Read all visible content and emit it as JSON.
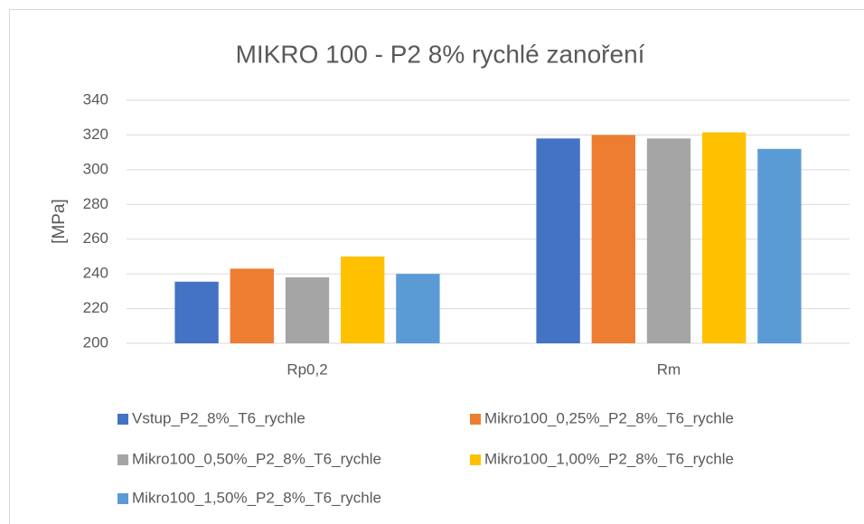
{
  "chart_data": {
    "type": "bar",
    "title": "MIKRO 100 - P2 8% rychlé zanoření",
    "y_label": "[MPa]",
    "categories": [
      "Rp0,2",
      "Rm"
    ],
    "series": [
      {
        "name": "Vstup_P2_8%_T6_rychle",
        "color": "#4472c4",
        "values": [
          235.5,
          318
        ]
      },
      {
        "name": "Mikro100_0,25%_P2_8%_T6_rychle",
        "color": "#ed7d31",
        "values": [
          243,
          320
        ]
      },
      {
        "name": "Mikro100_0,50%_P2_8%_T6_rychle",
        "color": "#a5a5a5",
        "values": [
          238,
          318
        ]
      },
      {
        "name": "Mikro100_1,00%_P2_8%_T6_rychle",
        "color": "#ffc000",
        "values": [
          250,
          321.5
        ]
      },
      {
        "name": "Mikro100_1,50%_P2_8%_T6_rychle",
        "color": "#5b9bd5",
        "values": [
          240,
          312
        ]
      }
    ],
    "ylim": [
      200,
      340
    ],
    "yticks": [
      200,
      220,
      240,
      260,
      280,
      300,
      320,
      340
    ],
    "grid": true
  }
}
